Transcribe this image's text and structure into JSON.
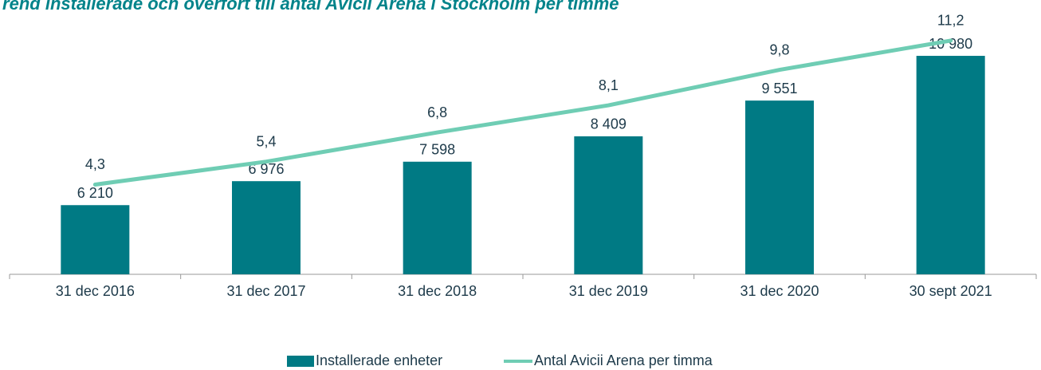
{
  "chart_data": {
    "type": "bar_line",
    "title": "Trend installerade och överfört till antal Avicii Arena i Stockholm per timme",
    "categories": [
      "31 dec 2016",
      "31 dec 2017",
      "31 dec 2018",
      "31 dec 2019",
      "31 dec 2020",
      "30 sept 2021"
    ],
    "series": [
      {
        "name": "Installerade enheter",
        "type": "bar",
        "color": "#007a84",
        "values": [
          6210,
          6976,
          7598,
          8409,
          9551,
          10980
        ],
        "value_labels": [
          "6 210",
          "6 976",
          "7 598",
          "8 409",
          "9 551",
          "10 980"
        ]
      },
      {
        "name": "Antal  Avicii Arena per timma",
        "type": "line",
        "axis": "y2",
        "color": "#6fcdb4",
        "values": [
          4.3,
          5.4,
          6.8,
          8.1,
          9.8,
          11.2
        ],
        "value_labels": [
          "4,3",
          "5,4",
          "6,8",
          "8,1",
          "9,8",
          "11,2"
        ]
      }
    ],
    "ylim": [
      4000,
      12000
    ],
    "y2lim": [
      0,
      12
    ],
    "legend": "bottom"
  }
}
